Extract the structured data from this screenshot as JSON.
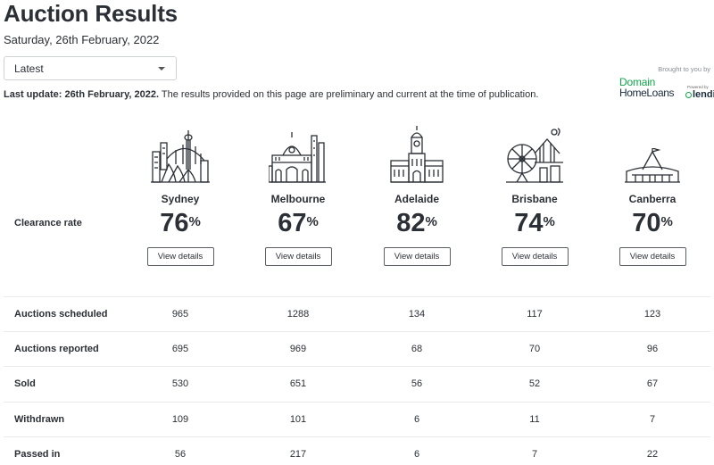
{
  "header": {
    "title": "Auction Results",
    "date": "Saturday, 26th February, 2022"
  },
  "filter": {
    "selected": "Latest"
  },
  "update": {
    "bold": "Last update: 26th February, 2022.",
    "text": " The results provided on this page are preliminary and current at the time of publication."
  },
  "sponsor": {
    "brought_by": "Brought to you by",
    "brand_line1": "Domain",
    "brand_line2": "HomeLoans",
    "powered_by": "Powered by",
    "partner": "lendi"
  },
  "clearance": {
    "label": "Clearance rate",
    "percent_symbol": "%",
    "button_label": "View details"
  },
  "cities": [
    {
      "name": "Sydney",
      "rate": "76",
      "icon": "sydney-skyline-icon"
    },
    {
      "name": "Melbourne",
      "rate": "67",
      "icon": "melbourne-skyline-icon"
    },
    {
      "name": "Adelaide",
      "rate": "82",
      "icon": "adelaide-skyline-icon"
    },
    {
      "name": "Brisbane",
      "rate": "74",
      "icon": "brisbane-skyline-icon"
    },
    {
      "name": "Canberra",
      "rate": "70",
      "icon": "canberra-skyline-icon"
    }
  ],
  "stats": [
    {
      "label": "Auctions scheduled",
      "values": [
        "965",
        "1288",
        "134",
        "117",
        "123"
      ]
    },
    {
      "label": "Auctions reported",
      "values": [
        "695",
        "969",
        "68",
        "70",
        "96"
      ]
    },
    {
      "label": "Sold",
      "values": [
        "530",
        "651",
        "56",
        "52",
        "67"
      ]
    },
    {
      "label": "Withdrawn",
      "values": [
        "109",
        "101",
        "6",
        "11",
        "7"
      ]
    },
    {
      "label": "Passed in",
      "values": [
        "56",
        "217",
        "6",
        "7",
        "22"
      ]
    }
  ]
}
